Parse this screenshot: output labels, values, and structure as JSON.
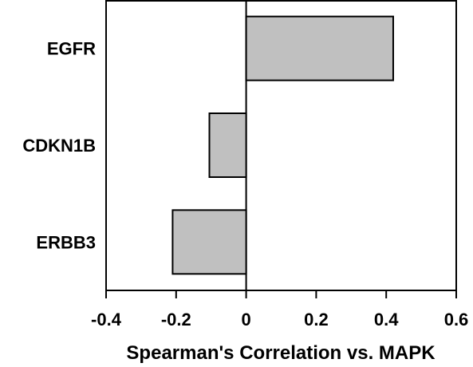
{
  "chart_data": {
    "type": "bar",
    "orientation": "horizontal",
    "categories": [
      "EGFR",
      "CDKN1B",
      "ERBB3"
    ],
    "values": [
      0.42,
      -0.105,
      -0.21
    ],
    "xlabel": "Spearman's Correlation vs. MAPK",
    "ylabel": "",
    "title": "",
    "xlim": [
      -0.4,
      0.6
    ],
    "xticks": [
      "-0.4",
      "-0.2",
      "0",
      "0.2",
      "0.4",
      "0.6"
    ],
    "grid": false,
    "legend": "none",
    "colors": {
      "bar_fill": "#c0c0c0",
      "bar_stroke": "#000000",
      "axis": "#000000"
    }
  }
}
